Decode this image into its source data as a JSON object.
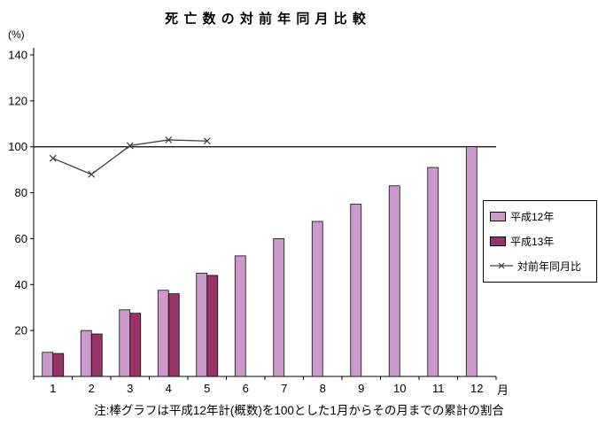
{
  "title": "死 亡 数 の 対 前 年 同 月 比 較",
  "note": "注:棒グラフは平成12年計(概数)を100とした1月からその月までの累計の割合",
  "axes": {
    "y_unit": "(%)",
    "x_unit": "月"
  },
  "legend": {
    "items": [
      {
        "label": "平成12年",
        "swatch": "bar",
        "color": "#CC99CC"
      },
      {
        "label": "平成13年",
        "swatch": "bar",
        "color": "#993366"
      },
      {
        "label": "対前年同月比",
        "swatch": "line",
        "color": "#404040"
      }
    ]
  },
  "chart_data": {
    "type": "bar",
    "title": "死亡数の対前年同月比較",
    "categories": [
      "1",
      "2",
      "3",
      "4",
      "5",
      "6",
      "7",
      "8",
      "9",
      "10",
      "11",
      "12"
    ],
    "series": [
      {
        "name": "平成12年",
        "type": "bar",
        "color": "#CC99CC",
        "values": [
          10.5,
          20,
          29,
          37.5,
          45,
          52.5,
          60,
          67.5,
          75,
          83,
          91,
          100
        ]
      },
      {
        "name": "平成13年",
        "type": "bar",
        "color": "#993366",
        "values": [
          10,
          18.5,
          27.5,
          36,
          44,
          null,
          null,
          null,
          null,
          null,
          null,
          null
        ]
      },
      {
        "name": "対前年同月比",
        "type": "line",
        "color": "#404040",
        "values": [
          95,
          88,
          100.5,
          103,
          102.5,
          null,
          null,
          null,
          null,
          null,
          null,
          null
        ]
      }
    ],
    "xlabel": "月",
    "ylabel": "(%)",
    "ylim": [
      0,
      140
    ],
    "yticks": [
      20,
      40,
      60,
      80,
      100,
      120,
      140
    ],
    "reference_line": 100,
    "grid": false,
    "legend_position": "right"
  }
}
